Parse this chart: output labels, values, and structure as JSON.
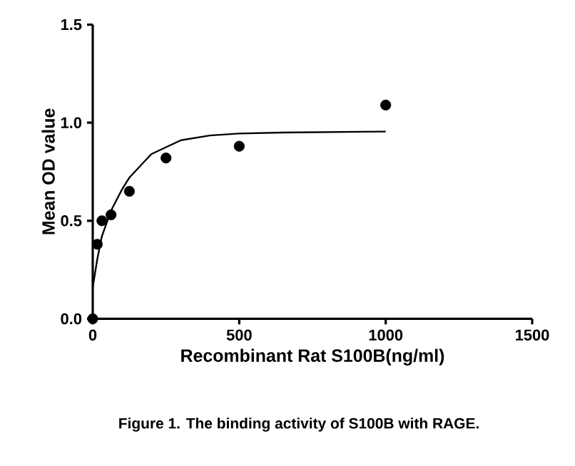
{
  "chart_data": {
    "type": "scatter",
    "title": "Figure 1. The binding activity of S100B with RAGE.",
    "xlabel": "Recombinant Rat S100B(ng/ml)",
    "ylabel": "Mean OD value",
    "series": [
      {
        "color": "#000000",
        "marker": "circle",
        "x": [
          0,
          15.6,
          31.25,
          62.5,
          125,
          250,
          500,
          1000
        ],
        "values": [
          0,
          0.38,
          0.5,
          0.53,
          0.65,
          0.82,
          0.88,
          1.09
        ]
      },
      {
        "type": "line",
        "color": "#000000",
        "marker": "none",
        "line_style": "solid",
        "x": [
          0,
          15,
          31,
          62,
          100,
          125,
          200,
          300,
          400,
          500,
          650,
          1000
        ],
        "values": [
          0.16,
          0.3,
          0.42,
          0.55,
          0.66,
          0.72,
          0.84,
          0.91,
          0.935,
          0.945,
          0.95,
          0.955
        ]
      }
    ],
    "xlim": [
      0,
      1500
    ],
    "ylim": [
      0,
      1.5
    ],
    "xticks": [
      0,
      500,
      1000,
      1500
    ],
    "yticks": [
      {
        "value": 0,
        "label": "0.0"
      },
      {
        "value": 0.5,
        "label": "0.5"
      },
      {
        "value": 1,
        "label": "1.0"
      },
      {
        "value": 1.5,
        "label": "1.5"
      }
    ],
    "grid": false
  }
}
